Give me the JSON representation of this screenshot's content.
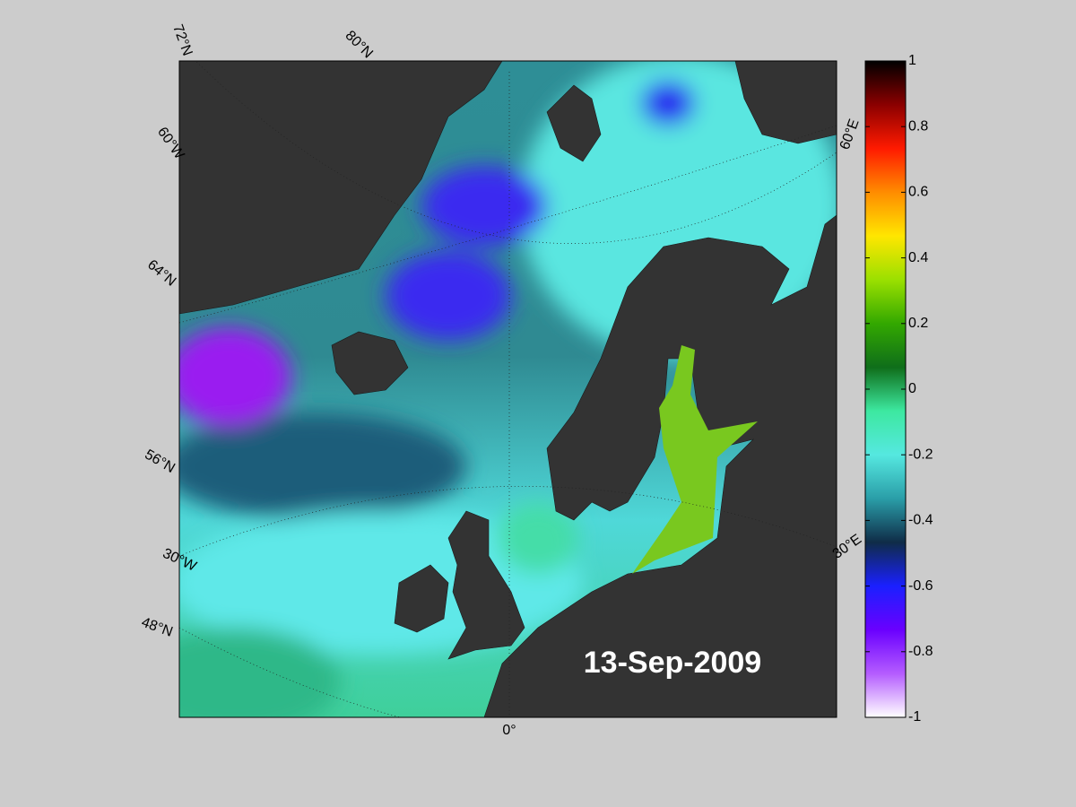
{
  "map": {
    "date": "13-Sep-2009",
    "graticule_labels": [
      "72°N",
      "80°N",
      "60°W",
      "64°N",
      "56°N",
      "30°W",
      "48°N",
      "0°",
      "60°E",
      "30°E"
    ]
  },
  "colorbar": {
    "lim": [
      -1,
      1
    ],
    "ticks": [
      1,
      0.8,
      0.6,
      0.4,
      0.2,
      0,
      -0.2,
      -0.4,
      -0.6,
      -0.8,
      -1
    ],
    "colormap": [
      "#000000",
      "#8b0000",
      "#ff1a00",
      "#ff8c00",
      "#ffe600",
      "#9be000",
      "#33a800",
      "#0f6e1a",
      "#3de8a0",
      "#55e8e0",
      "#2a9ea8",
      "#0f2c48",
      "#1a20ff",
      "#6a00ff",
      "#b45cff",
      "#ffffff"
    ]
  }
}
